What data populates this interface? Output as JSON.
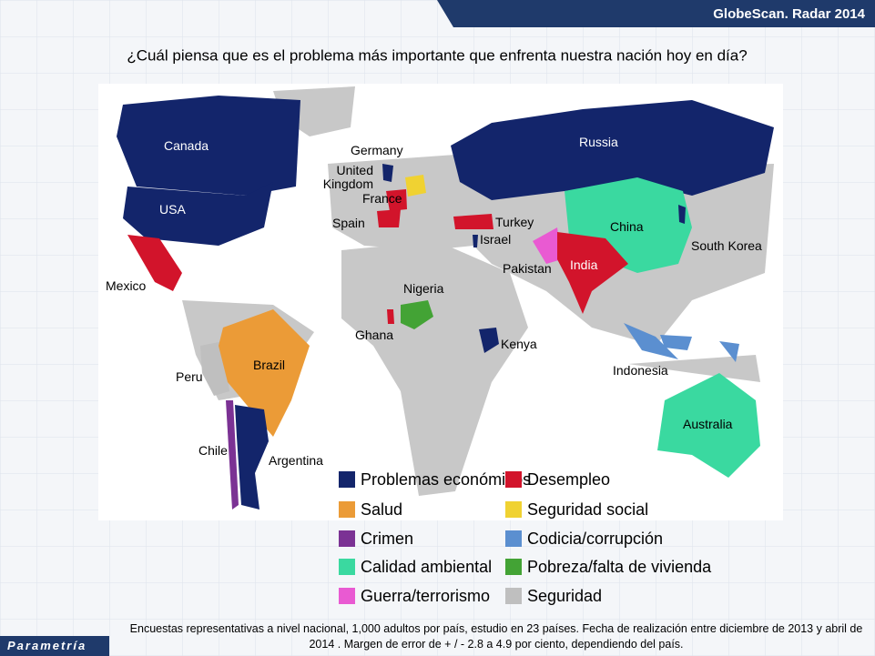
{
  "header": {
    "brand": "GlobeScan. Radar 2014",
    "title": "¿Cuál piensa que es el problema más importante que enfrenta nuestra nación hoy en día?"
  },
  "countries": [
    {
      "label": "Canada",
      "color": "#13256b"
    },
    {
      "label": "USA",
      "color": "#13256b"
    },
    {
      "label": "Mexico",
      "color": "#d2142b"
    },
    {
      "label": "Peru",
      "color": "#bfbfbf"
    },
    {
      "label": "Brazil",
      "color": "#eb9b37"
    },
    {
      "label": "Chile",
      "color": "#7b3294"
    },
    {
      "label": "Argentina",
      "color": "#13256b"
    },
    {
      "label": "Germany",
      "color": "#f0d232"
    },
    {
      "label": "United Kingdom",
      "color": "#13256b"
    },
    {
      "label": "France",
      "color": "#d2142b"
    },
    {
      "label": "Spain",
      "color": "#d2142b"
    },
    {
      "label": "Nigeria",
      "color": "#43a335"
    },
    {
      "label": "Ghana",
      "color": "#d2142b"
    },
    {
      "label": "Kenya",
      "color": "#13256b"
    },
    {
      "label": "Turkey",
      "color": "#d2142b"
    },
    {
      "label": "Israel",
      "color": "#13256b"
    },
    {
      "label": "Russia",
      "color": "#13256b"
    },
    {
      "label": "China",
      "color": "#3ad9a0"
    },
    {
      "label": "Pakistan",
      "color": "#e95ad2"
    },
    {
      "label": "India",
      "color": "#d2142b"
    },
    {
      "label": "South Korea",
      "color": "#13256b"
    },
    {
      "label": "Indonesia",
      "color": "#5b8fd0"
    },
    {
      "label": "Australia",
      "color": "#3ad9a0"
    }
  ],
  "legend": [
    {
      "label": "Problemas económicos",
      "color": "#13256b"
    },
    {
      "label": "Salud",
      "color": "#eb9b37"
    },
    {
      "label": "Crimen",
      "color": "#7b3294"
    },
    {
      "label": "Calidad ambiental",
      "color": "#3ad9a0"
    },
    {
      "label": "Guerra/terrorismo",
      "color": "#e95ad2"
    },
    {
      "label": "Desempleo",
      "color": "#d2142b"
    },
    {
      "label": "Seguridad social",
      "color": "#f0d232"
    },
    {
      "label": "Codicia/corrupción",
      "color": "#5b8fd0"
    },
    {
      "label": "Pobreza/falta de vivienda",
      "color": "#43a335"
    },
    {
      "label": "Seguridad",
      "color": "#bfbfbf"
    }
  ],
  "footer": {
    "note": "Encuestas representativas a nivel nacional, 1,000 adultos por país, estudio en 23 países. Fecha de realización entre diciembre de 2013 y abril de 2014 . Margen de error  de + / - 2.8 a 4.9 por ciento, dependiendo del país.",
    "logo": "Parametría"
  }
}
